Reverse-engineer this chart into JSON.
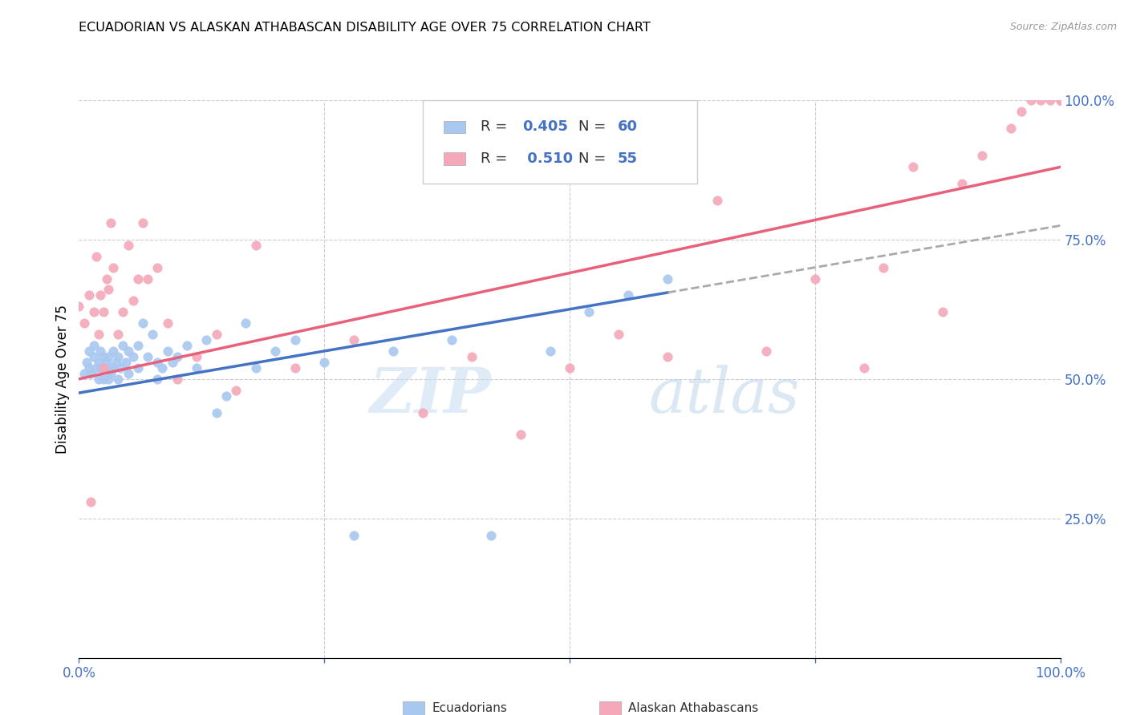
{
  "title": "ECUADORIAN VS ALASKAN ATHABASCAN DISABILITY AGE OVER 75 CORRELATION CHART",
  "source": "Source: ZipAtlas.com",
  "ylabel": "Disability Age Over 75",
  "blue_color": "#A8C8F0",
  "pink_color": "#F4A8B8",
  "blue_line_color": "#4472C4",
  "pink_line_color": "#E8607A",
  "dashed_line_color": "#AAAAAA",
  "text_color_blue": "#4472C4",
  "legend_R_blue": "0.405",
  "legend_N_blue": "60",
  "legend_R_pink": "0.510",
  "legend_N_pink": "55",
  "watermark": "ZIPatlas",
  "blue_scatter_x": [
    0.005,
    0.008,
    0.01,
    0.01,
    0.012,
    0.015,
    0.015,
    0.018,
    0.02,
    0.02,
    0.022,
    0.022,
    0.025,
    0.025,
    0.025,
    0.028,
    0.03,
    0.03,
    0.03,
    0.032,
    0.035,
    0.035,
    0.038,
    0.04,
    0.04,
    0.042,
    0.045,
    0.048,
    0.05,
    0.05,
    0.055,
    0.06,
    0.06,
    0.065,
    0.07,
    0.075,
    0.08,
    0.08,
    0.085,
    0.09,
    0.095,
    0.1,
    0.11,
    0.12,
    0.13,
    0.14,
    0.15,
    0.17,
    0.18,
    0.2,
    0.22,
    0.25,
    0.28,
    0.32,
    0.38,
    0.42,
    0.48,
    0.52,
    0.56,
    0.6
  ],
  "blue_scatter_y": [
    0.51,
    0.53,
    0.52,
    0.55,
    0.51,
    0.54,
    0.56,
    0.52,
    0.5,
    0.53,
    0.52,
    0.55,
    0.5,
    0.52,
    0.54,
    0.53,
    0.5,
    0.52,
    0.54,
    0.51,
    0.52,
    0.55,
    0.53,
    0.5,
    0.54,
    0.52,
    0.56,
    0.53,
    0.51,
    0.55,
    0.54,
    0.52,
    0.56,
    0.6,
    0.54,
    0.58,
    0.5,
    0.53,
    0.52,
    0.55,
    0.53,
    0.54,
    0.56,
    0.52,
    0.57,
    0.44,
    0.47,
    0.6,
    0.52,
    0.55,
    0.57,
    0.53,
    0.22,
    0.55,
    0.57,
    0.22,
    0.55,
    0.62,
    0.65,
    0.68
  ],
  "pink_scatter_x": [
    0.0,
    0.005,
    0.01,
    0.012,
    0.015,
    0.018,
    0.02,
    0.022,
    0.025,
    0.025,
    0.028,
    0.03,
    0.032,
    0.035,
    0.04,
    0.045,
    0.05,
    0.055,
    0.06,
    0.065,
    0.07,
    0.08,
    0.09,
    0.1,
    0.12,
    0.14,
    0.16,
    0.18,
    0.22,
    0.28,
    0.35,
    0.4,
    0.45,
    0.5,
    0.55,
    0.6,
    0.65,
    0.7,
    0.75,
    0.8,
    0.82,
    0.85,
    0.88,
    0.9,
    0.92,
    0.95,
    0.96,
    0.97,
    0.98,
    0.99,
    1.0,
    1.0,
    1.0,
    1.0,
    1.0
  ],
  "pink_scatter_y": [
    0.63,
    0.6,
    0.65,
    0.28,
    0.62,
    0.72,
    0.58,
    0.65,
    0.62,
    0.52,
    0.68,
    0.66,
    0.78,
    0.7,
    0.58,
    0.62,
    0.74,
    0.64,
    0.68,
    0.78,
    0.68,
    0.7,
    0.6,
    0.5,
    0.54,
    0.58,
    0.48,
    0.74,
    0.52,
    0.57,
    0.44,
    0.54,
    0.4,
    0.52,
    0.58,
    0.54,
    0.82,
    0.55,
    0.68,
    0.52,
    0.7,
    0.88,
    0.62,
    0.85,
    0.9,
    0.95,
    0.98,
    1.0,
    1.0,
    1.0,
    1.0,
    1.0,
    1.0,
    1.0,
    1.0
  ]
}
